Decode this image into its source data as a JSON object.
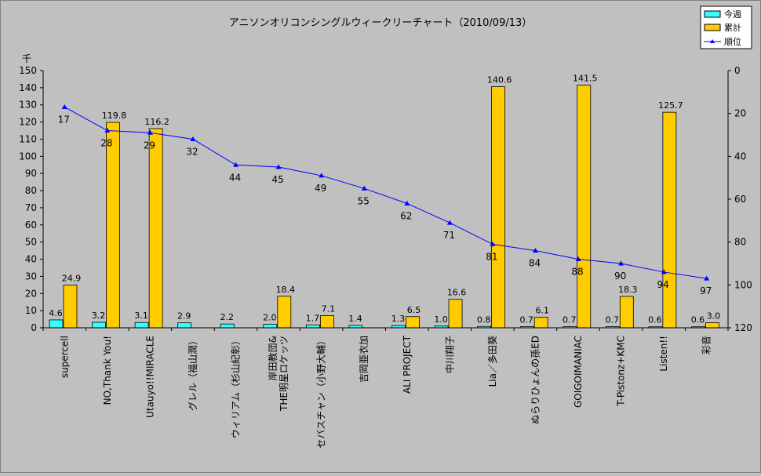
{
  "chart_data": {
    "type": "bar",
    "title": "アニソンオリコンシングルウィークリーチャート（2010/09/13）",
    "y_unit": "千",
    "categories": [
      "supercell",
      "NO,Thank You!",
      "Utauyo!!MIRACLE",
      "グレル（福山潤）",
      "ウィリアム（杉山紀彰）",
      "岸田教団&\nTHE明星ロケッツ",
      "セバスチャン（小野大輔）",
      "吉岡亜衣加",
      "ALI PROJECT",
      "中川翔子",
      "Lia／多田葵",
      "ぬらりひょんの孫ED",
      "GOIGOIMANIAC",
      "T-Pistonz+KMC",
      "Listen!!",
      "彩音"
    ],
    "series": [
      {
        "name": "今週",
        "values": [
          4.6,
          3.2,
          3.1,
          2.9,
          2.2,
          2.0,
          1.7,
          1.4,
          1.3,
          1.0,
          0.8,
          0.7,
          0.7,
          0.7,
          0.6,
          0.6
        ],
        "color": "#33ffff",
        "labels": [
          "4.6",
          "3.2",
          "3.1",
          "2.9",
          "2.2",
          "2.0",
          "1.7",
          "1.4",
          "1.3",
          "1.0",
          "0.8",
          "0.7",
          "0.7",
          "0.7",
          "0.6",
          "0.6"
        ]
      },
      {
        "name": "累計",
        "values": [
          24.9,
          119.8,
          116.2,
          null,
          null,
          18.4,
          7.1,
          null,
          6.5,
          16.6,
          140.6,
          6.1,
          141.5,
          18.3,
          125.7,
          3.0
        ],
        "color": "#ffcc00",
        "labels": [
          "24.9",
          "119.8",
          "116.2",
          null,
          null,
          "18.4",
          "7.1",
          null,
          "6.5",
          "16.6",
          "140.6",
          "6.1",
          "141.5",
          "18.3",
          "125.7",
          "3.0"
        ]
      },
      {
        "name": "順位",
        "values": [
          17,
          28,
          29,
          32,
          44,
          45,
          49,
          55,
          62,
          71,
          81,
          84,
          88,
          90,
          94,
          97
        ],
        "color": "#0000ff",
        "labels": [
          "17",
          "28",
          "29",
          "32",
          "44",
          "45",
          "49",
          "55",
          "62",
          "71",
          "81",
          "84",
          "88",
          "90",
          "94",
          "97"
        ],
        "axis": "right"
      }
    ],
    "y_left": {
      "min": 0,
      "max": 150,
      "step": 10,
      "ticks": [
        "0",
        "10",
        "20",
        "30",
        "40",
        "50",
        "60",
        "70",
        "80",
        "90",
        "100",
        "110",
        "120",
        "130",
        "140",
        "150"
      ]
    },
    "y_right": {
      "min": 0,
      "max": 120,
      "step": 20,
      "reversed": true,
      "ticks": [
        "0",
        "20",
        "40",
        "60",
        "80",
        "100",
        "120"
      ]
    },
    "legend": {
      "position": "top-right",
      "items": [
        "今週",
        "累計",
        "順位"
      ]
    },
    "grid": false
  }
}
